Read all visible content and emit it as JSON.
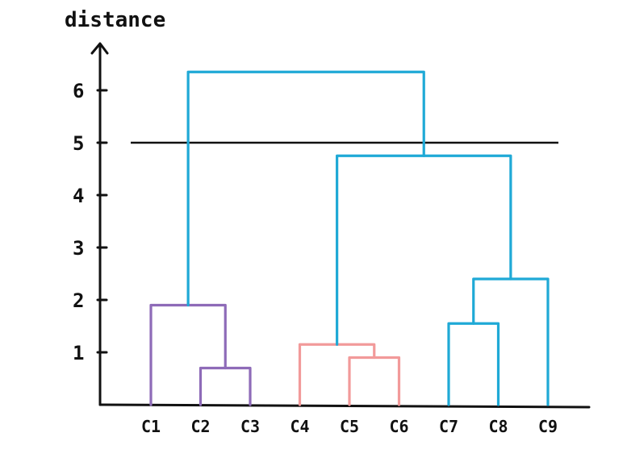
{
  "chart_data": {
    "type": "dendrogram",
    "ylabel": "distance",
    "yticks": [
      "1",
      "2",
      "3",
      "4",
      "5",
      "6"
    ],
    "threshold": 5,
    "leaves": [
      "C1",
      "C2",
      "C3",
      "C4",
      "C5",
      "C6",
      "C7",
      "C8",
      "C9"
    ],
    "merges": [
      {
        "id": "m1",
        "left": "C2",
        "right": "C3",
        "height": 0.7,
        "color": "#8e6bb8"
      },
      {
        "id": "m2",
        "left": "C1",
        "right": "m1",
        "height": 1.9,
        "color": "#8e6bb8"
      },
      {
        "id": "m3",
        "left": "C5",
        "right": "C6",
        "height": 0.9,
        "color": "#f29a9a"
      },
      {
        "id": "m4",
        "left": "C4",
        "right": "m3",
        "height": 1.15,
        "color": "#f29a9a"
      },
      {
        "id": "m5",
        "left": "C7",
        "right": "C8",
        "height": 1.55,
        "color": "#1fa9d6"
      },
      {
        "id": "m6",
        "left": "m5",
        "right": "C9",
        "height": 2.4,
        "color": "#1fa9d6"
      },
      {
        "id": "m7",
        "left": "m4",
        "right": "m6",
        "height": 4.75,
        "color": "#1fa9d6"
      },
      {
        "id": "m8",
        "left": "m2",
        "right": "m7",
        "height": 6.35,
        "color": "#1fa9d6"
      }
    ]
  }
}
